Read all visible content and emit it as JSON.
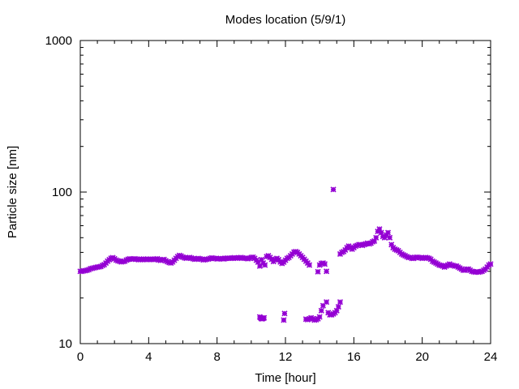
{
  "chart_data": {
    "type": "scatter",
    "title": "Modes location (5/9/1)",
    "xlabel": "Time [hour]",
    "ylabel": "Particle size [nm]",
    "xlim": [
      0,
      24
    ],
    "ylim": [
      10,
      1000
    ],
    "y_scale": "log",
    "x_ticks": [
      0,
      4,
      8,
      12,
      16,
      20,
      24
    ],
    "y_ticks": [
      10,
      100,
      1000
    ],
    "x_tick_labels": [
      "0",
      "4",
      "8",
      "12",
      "16",
      "20",
      "24"
    ],
    "y_tick_labels": [
      "10",
      "100",
      "1000"
    ],
    "grid": false,
    "legend": "none",
    "marker": "star",
    "marker_color": "#9400d3",
    "series": [
      {
        "points": [
          [
            0.0,
            30.0
          ],
          [
            0.1,
            30.0
          ],
          [
            0.2,
            30.2
          ],
          [
            0.3,
            30.3
          ],
          [
            0.4,
            30.5
          ],
          [
            0.5,
            30.8
          ],
          [
            0.6,
            31.2
          ],
          [
            0.7,
            31.4
          ],
          [
            0.8,
            31.6
          ],
          [
            0.9,
            31.8
          ],
          [
            1.0,
            32.0
          ],
          [
            1.1,
            32.1
          ],
          [
            1.2,
            32.3
          ],
          [
            1.3,
            32.8
          ],
          [
            1.4,
            33.2
          ],
          [
            1.5,
            34.0
          ],
          [
            1.6,
            35.0
          ],
          [
            1.7,
            35.8
          ],
          [
            1.8,
            36.6
          ],
          [
            1.9,
            36.9
          ],
          [
            2.0,
            36.3
          ],
          [
            2.1,
            35.6
          ],
          [
            2.2,
            35.2
          ],
          [
            2.3,
            34.9
          ],
          [
            2.4,
            34.6
          ],
          [
            2.5,
            34.8
          ],
          [
            2.6,
            35.0
          ],
          [
            2.7,
            35.6
          ],
          [
            2.8,
            36.0
          ],
          [
            2.9,
            36.3
          ],
          [
            3.0,
            36.0
          ],
          [
            3.1,
            36.2
          ],
          [
            3.2,
            36.3
          ],
          [
            3.3,
            36.1
          ],
          [
            3.4,
            35.8
          ],
          [
            3.5,
            35.8
          ],
          [
            3.6,
            36.0
          ],
          [
            3.7,
            36.2
          ],
          [
            3.8,
            35.9
          ],
          [
            3.9,
            35.8
          ],
          [
            4.0,
            36.0
          ],
          [
            4.1,
            36.2
          ],
          [
            4.2,
            36.0
          ],
          [
            4.3,
            35.8
          ],
          [
            4.4,
            36.0
          ],
          [
            4.5,
            36.3
          ],
          [
            4.6,
            35.7
          ],
          [
            4.7,
            35.4
          ],
          [
            4.8,
            35.8
          ],
          [
            4.9,
            35.9
          ],
          [
            5.0,
            35.2
          ],
          [
            5.1,
            34.7
          ],
          [
            5.2,
            34.3
          ],
          [
            5.3,
            34.0
          ],
          [
            5.4,
            34.6
          ],
          [
            5.5,
            35.5
          ],
          [
            5.6,
            36.5
          ],
          [
            5.7,
            37.5
          ],
          [
            5.8,
            38.2
          ],
          [
            5.9,
            37.8
          ],
          [
            6.0,
            37.2
          ],
          [
            6.1,
            36.8
          ],
          [
            6.2,
            36.6
          ],
          [
            6.3,
            36.8
          ],
          [
            6.4,
            37.0
          ],
          [
            6.5,
            36.7
          ],
          [
            6.6,
            36.3
          ],
          [
            6.7,
            36.0
          ],
          [
            6.8,
            36.2
          ],
          [
            6.9,
            36.5
          ],
          [
            7.0,
            36.3
          ],
          [
            7.1,
            36.0
          ],
          [
            7.2,
            35.7
          ],
          [
            7.3,
            35.8
          ],
          [
            7.4,
            36.0
          ],
          [
            7.5,
            36.2
          ],
          [
            7.6,
            36.5
          ],
          [
            7.7,
            36.8
          ],
          [
            7.8,
            36.6
          ],
          [
            7.9,
            36.4
          ],
          [
            8.0,
            36.2
          ],
          [
            8.1,
            36.3
          ],
          [
            8.2,
            36.5
          ],
          [
            8.3,
            36.3
          ],
          [
            8.4,
            36.2
          ],
          [
            8.5,
            36.5
          ],
          [
            8.6,
            36.7
          ],
          [
            8.7,
            36.6
          ],
          [
            8.8,
            36.5
          ],
          [
            8.9,
            36.7
          ],
          [
            9.0,
            36.9
          ],
          [
            9.1,
            36.7
          ],
          [
            9.2,
            36.6
          ],
          [
            9.3,
            36.8
          ],
          [
            9.4,
            37.0
          ],
          [
            9.5,
            36.8
          ],
          [
            9.6,
            36.6
          ],
          [
            9.7,
            36.5
          ],
          [
            9.8,
            36.3
          ],
          [
            9.9,
            36.6
          ],
          [
            10.0,
            37.0
          ],
          [
            10.1,
            37.2
          ],
          [
            10.2,
            36.5
          ],
          [
            10.3,
            35.5
          ],
          [
            10.4,
            34.5
          ],
          [
            10.5,
            32.5
          ],
          [
            10.6,
            35.8
          ],
          [
            10.7,
            34.0
          ],
          [
            10.8,
            33.0
          ],
          [
            10.9,
            37.5
          ],
          [
            11.0,
            38.0
          ],
          [
            11.1,
            37.0
          ],
          [
            11.2,
            36.0
          ],
          [
            11.3,
            34.8
          ],
          [
            11.4,
            35.8
          ],
          [
            11.5,
            36.5
          ],
          [
            11.6,
            35.8
          ],
          [
            11.7,
            34.6
          ],
          [
            11.8,
            33.8
          ],
          [
            11.9,
            34.5
          ],
          [
            12.0,
            35.5
          ],
          [
            12.1,
            36.5
          ],
          [
            12.2,
            37.0
          ],
          [
            12.3,
            38.0
          ],
          [
            12.4,
            39.0
          ],
          [
            12.5,
            40.2
          ],
          [
            12.6,
            40.5
          ],
          [
            12.7,
            40.0
          ],
          [
            12.8,
            39.0
          ],
          [
            12.9,
            38.0
          ],
          [
            13.0,
            37.0
          ],
          [
            13.1,
            36.0
          ],
          [
            13.2,
            35.0
          ],
          [
            13.3,
            34.0
          ],
          [
            13.4,
            33.0
          ],
          [
            13.9,
            29.8
          ],
          [
            14.0,
            33.0
          ],
          [
            14.1,
            33.8
          ],
          [
            14.2,
            34.0
          ],
          [
            14.3,
            33.5
          ],
          [
            14.4,
            30.0
          ],
          [
            14.8,
            104.0
          ],
          [
            15.2,
            39.0
          ],
          [
            15.3,
            40.0
          ],
          [
            15.4,
            40.5
          ],
          [
            15.5,
            41.5
          ],
          [
            15.6,
            43.0
          ],
          [
            15.7,
            44.0
          ],
          [
            15.8,
            43.0
          ],
          [
            15.9,
            42.0
          ],
          [
            16.0,
            43.0
          ],
          [
            16.1,
            44.0
          ],
          [
            16.2,
            44.5
          ],
          [
            16.3,
            45.0
          ],
          [
            16.4,
            45.0
          ],
          [
            16.5,
            44.5
          ],
          [
            16.6,
            45.0
          ],
          [
            16.7,
            45.5
          ],
          [
            16.8,
            46.0
          ],
          [
            16.9,
            45.5
          ],
          [
            17.0,
            46.0
          ],
          [
            17.1,
            47.0
          ],
          [
            17.2,
            47.5
          ],
          [
            17.3,
            50.0
          ],
          [
            17.4,
            55.0
          ],
          [
            17.5,
            57.0
          ],
          [
            17.6,
            54.0
          ],
          [
            17.7,
            51.0
          ],
          [
            17.8,
            50.0
          ],
          [
            17.9,
            52.0
          ],
          [
            18.0,
            54.0
          ],
          [
            18.1,
            50.0
          ],
          [
            18.2,
            45.0
          ],
          [
            18.3,
            43.0
          ],
          [
            18.4,
            42.0
          ],
          [
            18.5,
            41.5
          ],
          [
            18.6,
            41.0
          ],
          [
            18.7,
            40.0
          ],
          [
            18.8,
            39.0
          ],
          [
            18.9,
            38.5
          ],
          [
            19.0,
            38.0
          ],
          [
            19.1,
            37.5
          ],
          [
            19.2,
            37.0
          ],
          [
            19.3,
            37.0
          ],
          [
            19.4,
            36.5
          ],
          [
            19.5,
            36.5
          ],
          [
            19.6,
            37.0
          ],
          [
            19.7,
            37.2
          ],
          [
            19.8,
            37.0
          ],
          [
            19.9,
            36.8
          ],
          [
            20.0,
            36.5
          ],
          [
            20.1,
            36.8
          ],
          [
            20.2,
            37.0
          ],
          [
            20.3,
            36.8
          ],
          [
            20.4,
            36.5
          ],
          [
            20.5,
            36.0
          ],
          [
            20.6,
            35.0
          ],
          [
            20.7,
            34.5
          ],
          [
            20.8,
            34.0
          ],
          [
            20.9,
            33.5
          ],
          [
            21.0,
            33.0
          ],
          [
            21.1,
            32.8
          ],
          [
            21.2,
            32.5
          ],
          [
            21.3,
            32.0
          ],
          [
            21.4,
            32.5
          ],
          [
            21.5,
            33.0
          ],
          [
            21.6,
            33.5
          ],
          [
            21.7,
            33.0
          ],
          [
            21.8,
            32.8
          ],
          [
            21.9,
            32.5
          ],
          [
            22.0,
            32.5
          ],
          [
            22.1,
            32.0
          ],
          [
            22.2,
            31.5
          ],
          [
            22.3,
            31.0
          ],
          [
            22.4,
            30.5
          ],
          [
            22.5,
            30.5
          ],
          [
            22.6,
            31.0
          ],
          [
            22.7,
            31.0
          ],
          [
            22.8,
            30.5
          ],
          [
            22.9,
            30.0
          ],
          [
            23.0,
            29.8
          ],
          [
            23.1,
            29.6
          ],
          [
            23.2,
            29.8
          ],
          [
            23.3,
            29.6
          ],
          [
            23.4,
            29.8
          ],
          [
            23.5,
            30.0
          ],
          [
            23.6,
            30.5
          ],
          [
            23.7,
            31.0
          ],
          [
            23.8,
            32.0
          ],
          [
            23.9,
            33.0
          ],
          [
            24.0,
            33.5
          ],
          [
            10.5,
            15.0
          ],
          [
            10.55,
            14.8
          ],
          [
            10.6,
            14.6
          ],
          [
            10.65,
            14.6
          ],
          [
            10.7,
            14.7
          ],
          [
            10.75,
            14.8
          ],
          [
            11.9,
            14.3
          ],
          [
            11.95,
            15.8
          ],
          [
            13.2,
            14.5
          ],
          [
            13.3,
            14.4
          ],
          [
            13.4,
            14.6
          ],
          [
            13.5,
            14.8
          ],
          [
            13.6,
            14.6
          ],
          [
            13.7,
            14.3
          ],
          [
            13.8,
            14.4
          ],
          [
            13.9,
            14.6
          ],
          [
            14.0,
            15.0
          ],
          [
            14.1,
            16.5
          ],
          [
            14.2,
            17.8
          ],
          [
            14.4,
            18.8
          ],
          [
            14.5,
            16.0
          ],
          [
            14.6,
            15.5
          ],
          [
            14.7,
            15.5
          ],
          [
            14.8,
            15.7
          ],
          [
            14.9,
            16.0
          ],
          [
            15.0,
            16.5
          ],
          [
            15.1,
            17.5
          ],
          [
            15.2,
            18.8
          ]
        ]
      }
    ]
  }
}
